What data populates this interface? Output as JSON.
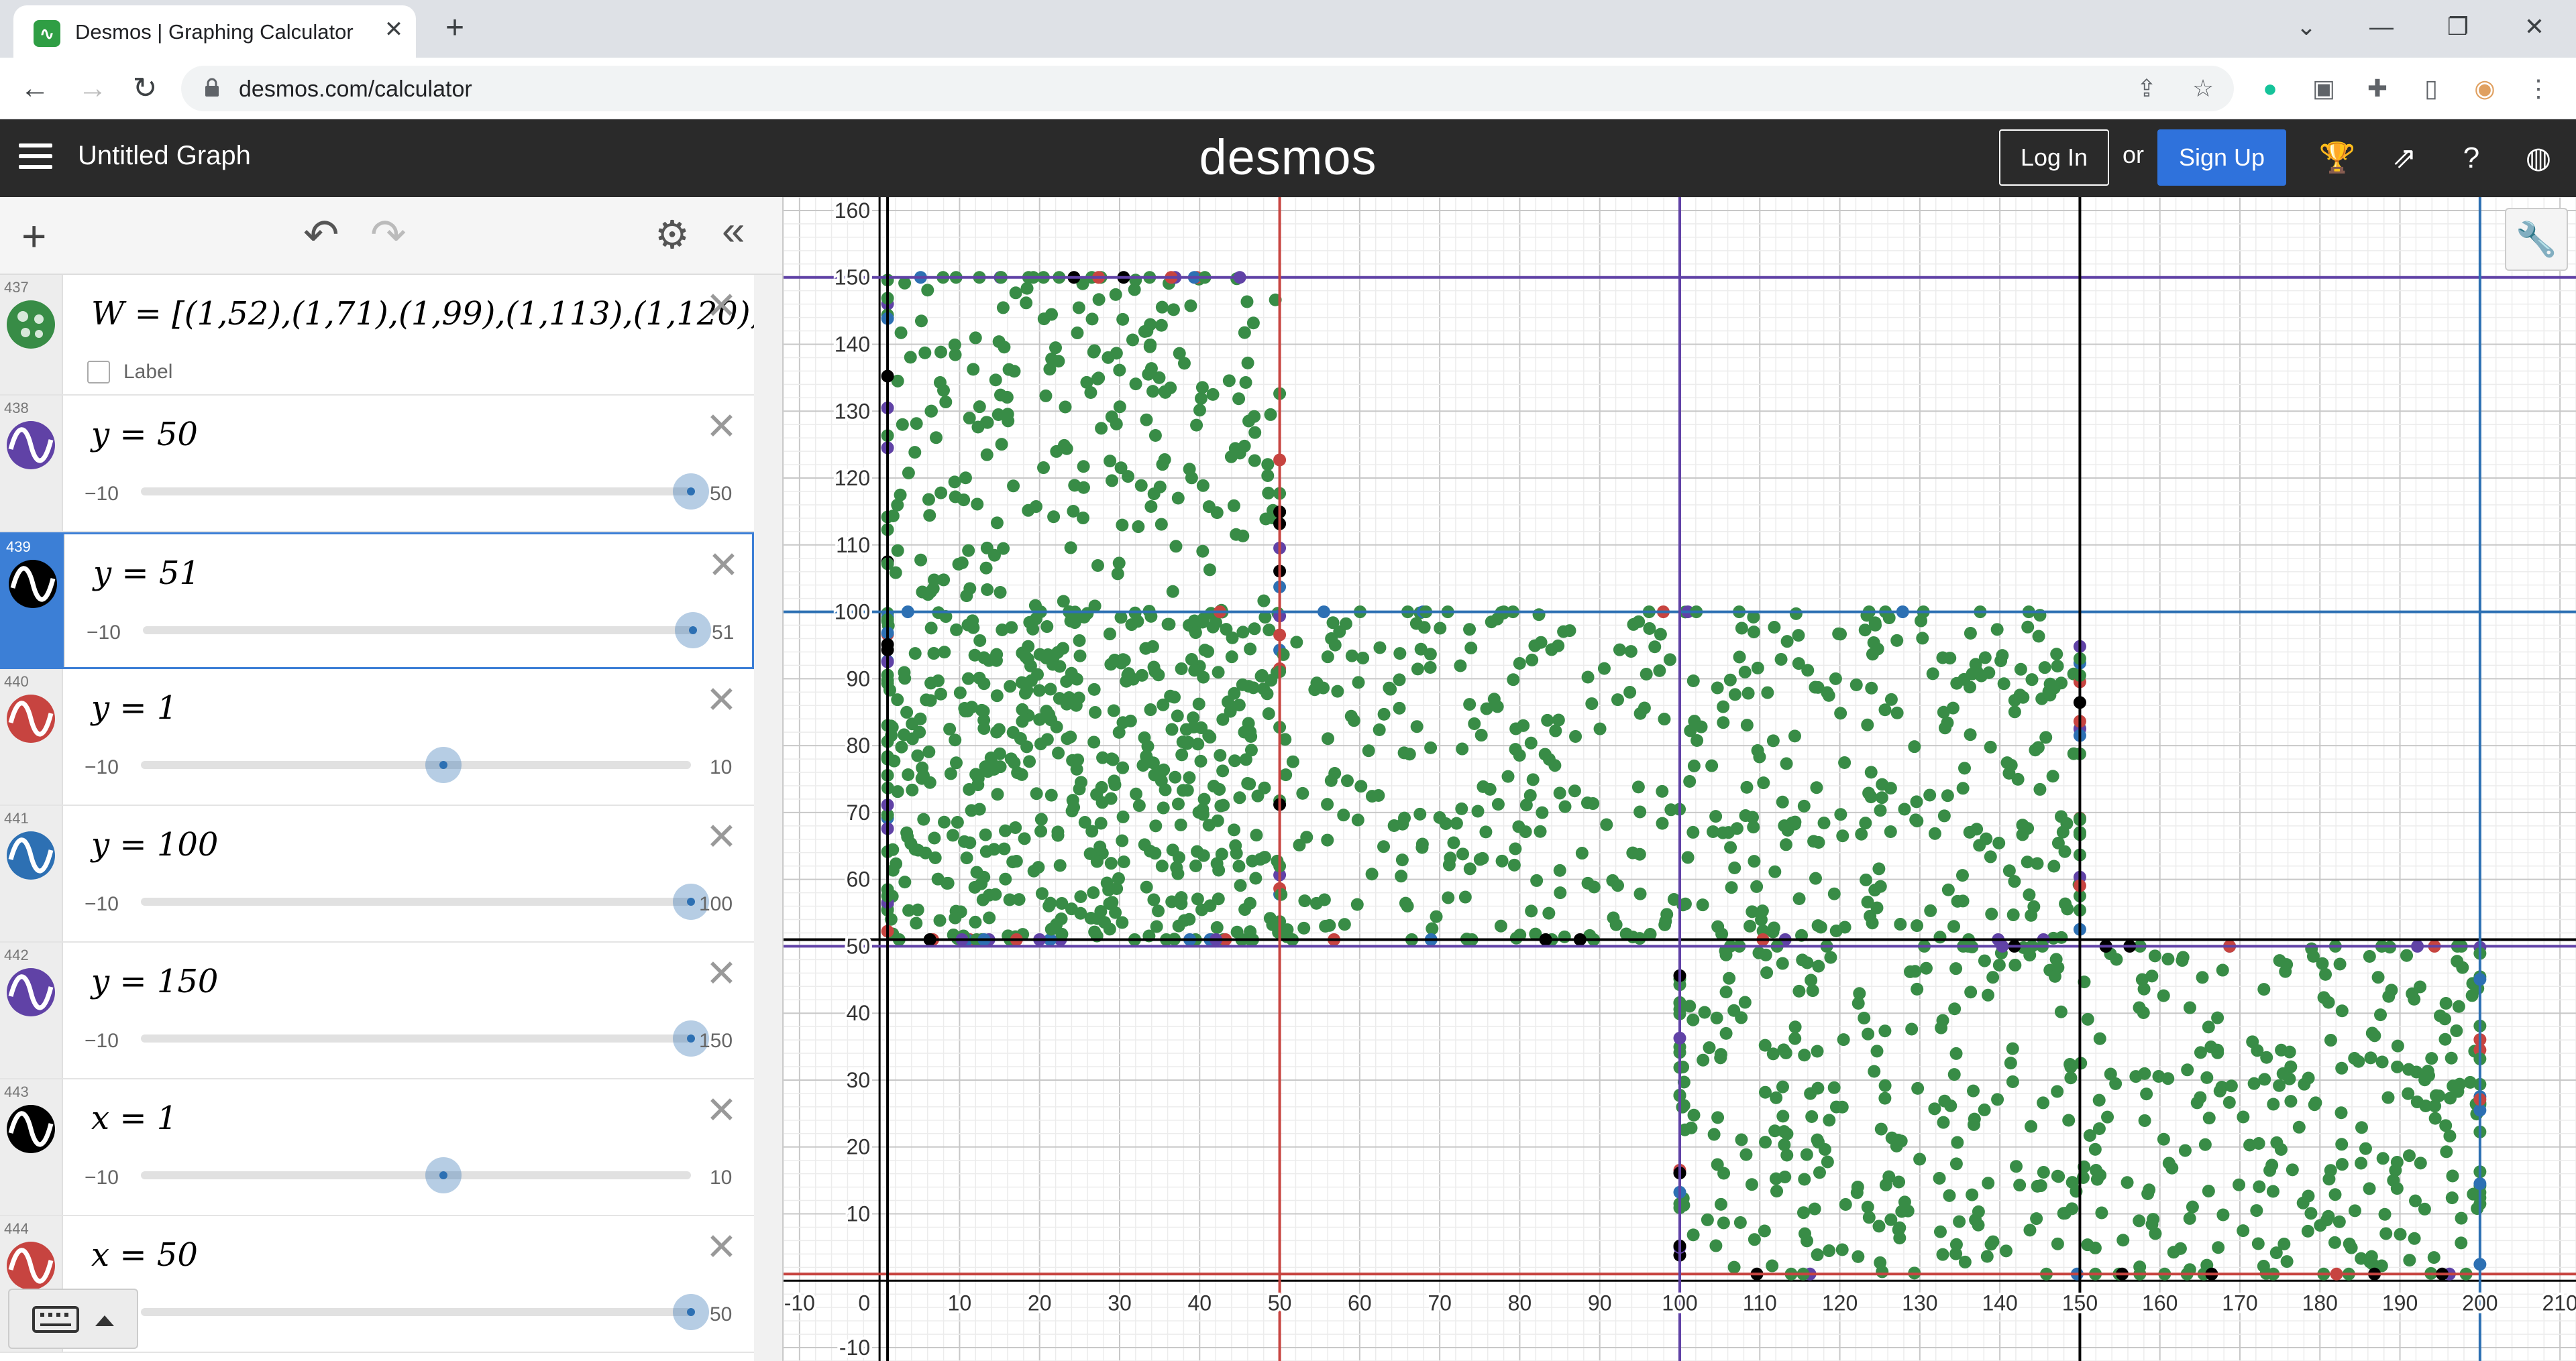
{
  "browser": {
    "tab_title": "Desmos | Graphing Calculator",
    "tab_close": "✕",
    "new_tab": "+",
    "url": "desmos.com/calculator",
    "window_controls": [
      "⌄",
      "—",
      "❐",
      "✕"
    ],
    "nav": {
      "back": "←",
      "forward": "→",
      "reload": "↻"
    },
    "extensions": [
      "share-icon",
      "star-icon",
      "grammarly-icon",
      "extension-a-icon",
      "puzzle-icon",
      "sidepanel-icon",
      "profile-avatar",
      "menu-dots-icon"
    ]
  },
  "header": {
    "graph_title": "Untitled Graph",
    "logo": "desmos",
    "login": "Log In",
    "or": "or",
    "signup": "Sign Up",
    "colors": {
      "bar": "#2a2a2a",
      "signup": "#2f72dc"
    }
  },
  "toolbar": {
    "add": "+",
    "undo": "↶",
    "redo": "↷",
    "settings": "⚙",
    "collapse": "«"
  },
  "expressions": [
    {
      "num": "437",
      "type": "points",
      "math": "W = [(1,52),(1,71),(1,99),(1,113),(1,120),(",
      "label": "Label",
      "color": "#388c46"
    },
    {
      "num": "438",
      "type": "line",
      "math": "y = 50",
      "min": "−10",
      "max": "50",
      "fraction": 1.0,
      "color": "#6042a6"
    },
    {
      "num": "439",
      "type": "line",
      "math": "y = 51",
      "min": "−10",
      "max": "51",
      "fraction": 1.0,
      "color": "#000000",
      "active": true
    },
    {
      "num": "440",
      "type": "line",
      "math": "y = 1",
      "min": "−10",
      "max": "10",
      "fraction": 0.55,
      "color": "#c74440"
    },
    {
      "num": "441",
      "type": "line",
      "math": "y = 100",
      "min": "−10",
      "max": "100",
      "fraction": 1.0,
      "color": "#2d70b3"
    },
    {
      "num": "442",
      "type": "line",
      "math": "y = 150",
      "min": "−10",
      "max": "150",
      "fraction": 1.0,
      "color": "#6042a6"
    },
    {
      "num": "443",
      "type": "line",
      "math": "x = 1",
      "min": "−10",
      "max": "10",
      "fraction": 0.55,
      "color": "#000000"
    },
    {
      "num": "444",
      "type": "line",
      "math": "x = 50",
      "min": "",
      "max": "50",
      "fraction": 1.0,
      "color": "#c74440"
    }
  ],
  "graph": {
    "x_ticks": [
      "-10",
      "0",
      "10",
      "20",
      "30",
      "40",
      "50",
      "60",
      "70",
      "80",
      "90",
      "100",
      "110",
      "120",
      "130",
      "140",
      "150",
      "160",
      "170",
      "180",
      "190",
      "200",
      "210"
    ],
    "y_ticks": [
      "160",
      "150",
      "140",
      "130",
      "120",
      "110",
      "100",
      "90",
      "80",
      "70",
      "60",
      "50",
      "40",
      "30",
      "20",
      "10",
      "-10"
    ],
    "x_range": [
      -12,
      212
    ],
    "y_range": [
      -12,
      162
    ],
    "grid": true,
    "horizontal_lines": [
      {
        "y": 150,
        "color": "#6042a6"
      },
      {
        "y": 100,
        "color": "#2d70b3"
      },
      {
        "y": 51,
        "color": "#000000"
      },
      {
        "y": 50,
        "color": "#6042a6"
      },
      {
        "y": 1,
        "color": "#c74440"
      }
    ],
    "vertical_lines": [
      {
        "x": 1,
        "color": "#000000"
      },
      {
        "x": 50,
        "color": "#c74440"
      },
      {
        "x": 100,
        "color": "#6042a6"
      },
      {
        "x": 150,
        "color": "#000000"
      },
      {
        "x": 200,
        "color": "#2d70b3"
      }
    ],
    "point_regions": [
      {
        "x": [
          1,
          50
        ],
        "y": [
          51,
          150
        ]
      },
      {
        "x": [
          1,
          150
        ],
        "y": [
          51,
          100
        ]
      },
      {
        "x": [
          100,
          200
        ],
        "y": [
          1,
          50
        ]
      }
    ],
    "point_color": "#388c46",
    "edge_colors": [
      "#000000",
      "#c74440",
      "#2d70b3",
      "#6042a6"
    ]
  }
}
